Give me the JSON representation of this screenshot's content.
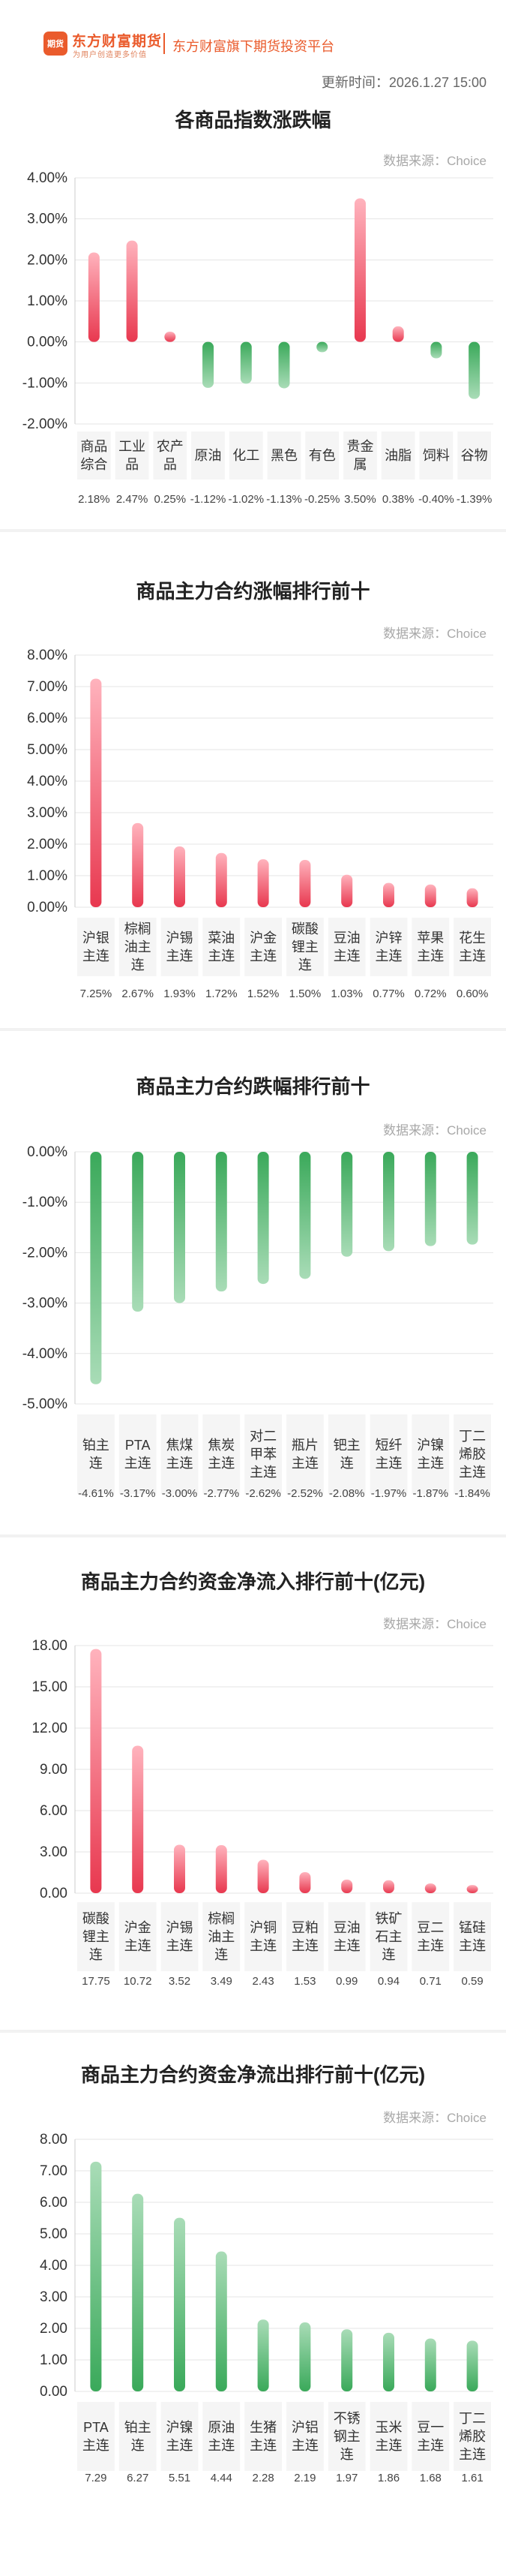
{
  "header": {
    "logo_badge": "期货",
    "logo_name": "东方财富期货",
    "logo_slogan": "为用户创造更多价值",
    "platform_title": "东方财富旗下期货投资平台",
    "update_time": "更新时间：2026.1.27 15:00"
  },
  "colors": {
    "rise": "#e8384f",
    "fall": "#3aa95a",
    "grid": "#e5e5e5",
    "label_bg": "#f5f5f5"
  },
  "chart_data": [
    {
      "type": "bar",
      "title": "各商品指数涨跌幅",
      "source": "数据来源：Choice",
      "categories": [
        "商品综合",
        "工业品",
        "农产品",
        "原油",
        "化工",
        "黑色",
        "有色",
        "贵金属",
        "油脂",
        "饲料",
        "谷物"
      ],
      "values": [
        2.18,
        2.47,
        0.25,
        -1.12,
        -1.02,
        -1.13,
        -0.25,
        3.5,
        0.38,
        -0.4,
        -1.39
      ],
      "value_labels": [
        "2.18%",
        "2.47%",
        "0.25%",
        "-1.12%",
        "-1.02%",
        "-1.13%",
        "-0.25%",
        "3.50%",
        "0.38%",
        "-0.40%",
        "-1.39%"
      ],
      "yticks": [
        "4.00%",
        "3.00%",
        "2.00%",
        "1.00%",
        "0.00%",
        "-1.00%",
        "-2.00%"
      ],
      "ylim": [
        -2,
        4
      ],
      "color_mode": "sign"
    },
    {
      "type": "bar",
      "title": "商品主力合约涨幅排行前十",
      "source": "数据来源：Choice",
      "categories": [
        "沪银主连",
        "棕榈油主连",
        "沪锡主连",
        "菜油主连",
        "沪金主连",
        "碳酸锂主连",
        "豆油主连",
        "沪锌主连",
        "苹果主连",
        "花生主连"
      ],
      "values": [
        7.25,
        2.67,
        1.93,
        1.72,
        1.52,
        1.5,
        1.03,
        0.77,
        0.72,
        0.6
      ],
      "value_labels": [
        "7.25%",
        "2.67%",
        "1.93%",
        "1.72%",
        "1.52%",
        "1.50%",
        "1.03%",
        "0.77%",
        "0.72%",
        "0.60%"
      ],
      "yticks": [
        "8.00%",
        "7.00%",
        "6.00%",
        "5.00%",
        "4.00%",
        "3.00%",
        "2.00%",
        "1.00%",
        "0.00%"
      ],
      "ylim": [
        0,
        8
      ],
      "color_mode": "rise"
    },
    {
      "type": "bar",
      "title": "商品主力合约跌幅排行前十",
      "source": "数据来源：Choice",
      "categories": [
        "铂主连",
        "PTA主连",
        "焦煤主连",
        "焦炭主连",
        "对二甲苯主连",
        "瓶片主连",
        "钯主连",
        "短纤主连",
        "沪镍主连",
        "丁二烯胶主连"
      ],
      "values": [
        -4.61,
        -3.17,
        -3.0,
        -2.77,
        -2.62,
        -2.52,
        -2.08,
        -1.97,
        -1.87,
        -1.84
      ],
      "value_labels": [
        "-4.61%",
        "-3.17%",
        "-3.00%",
        "-2.77%",
        "-2.62%",
        "-2.52%",
        "-2.08%",
        "-1.97%",
        "-1.87%",
        "-1.84%"
      ],
      "yticks": [
        "0.00%",
        "-1.00%",
        "-2.00%",
        "-3.00%",
        "-4.00%",
        "-5.00%"
      ],
      "ylim": [
        -5,
        0
      ],
      "color_mode": "fall"
    },
    {
      "type": "bar",
      "title": "商品主力合约资金净流入排行前十(亿元)",
      "source": "数据来源：Choice",
      "categories": [
        "碳酸锂主连",
        "沪金主连",
        "沪锡主连",
        "棕榈油主连",
        "沪铜主连",
        "豆粕主连",
        "豆油主连",
        "铁矿石主连",
        "豆二主连",
        "锰硅主连"
      ],
      "values": [
        17.75,
        10.72,
        3.52,
        3.49,
        2.43,
        1.53,
        0.99,
        0.94,
        0.71,
        0.59
      ],
      "value_labels": [
        "17.75",
        "10.72",
        "3.52",
        "3.49",
        "2.43",
        "1.53",
        "0.99",
        "0.94",
        "0.71",
        "0.59"
      ],
      "yticks": [
        "18.00",
        "15.00",
        "12.00",
        "9.00",
        "6.00",
        "3.00",
        "0.00"
      ],
      "ylim": [
        0,
        18
      ],
      "color_mode": "rise"
    },
    {
      "type": "bar",
      "title": "商品主力合约资金净流出排行前十(亿元)",
      "source": "数据来源：Choice",
      "categories": [
        "PTA主连",
        "铂主连",
        "沪镍主连",
        "原油主连",
        "生猪主连",
        "沪铝主连",
        "不锈钢主连",
        "玉米主连",
        "豆一主连",
        "丁二烯胶主连"
      ],
      "values": [
        7.29,
        6.27,
        5.51,
        4.44,
        2.28,
        2.19,
        1.97,
        1.86,
        1.68,
        1.61
      ],
      "value_labels": [
        "7.29",
        "6.27",
        "5.51",
        "4.44",
        "2.28",
        "2.19",
        "1.97",
        "1.86",
        "1.68",
        "1.61"
      ],
      "yticks": [
        "8.00",
        "7.00",
        "6.00",
        "5.00",
        "4.00",
        "3.00",
        "2.00",
        "1.00",
        "0.00"
      ],
      "ylim": [
        0,
        8
      ],
      "color_mode": "fall"
    }
  ]
}
